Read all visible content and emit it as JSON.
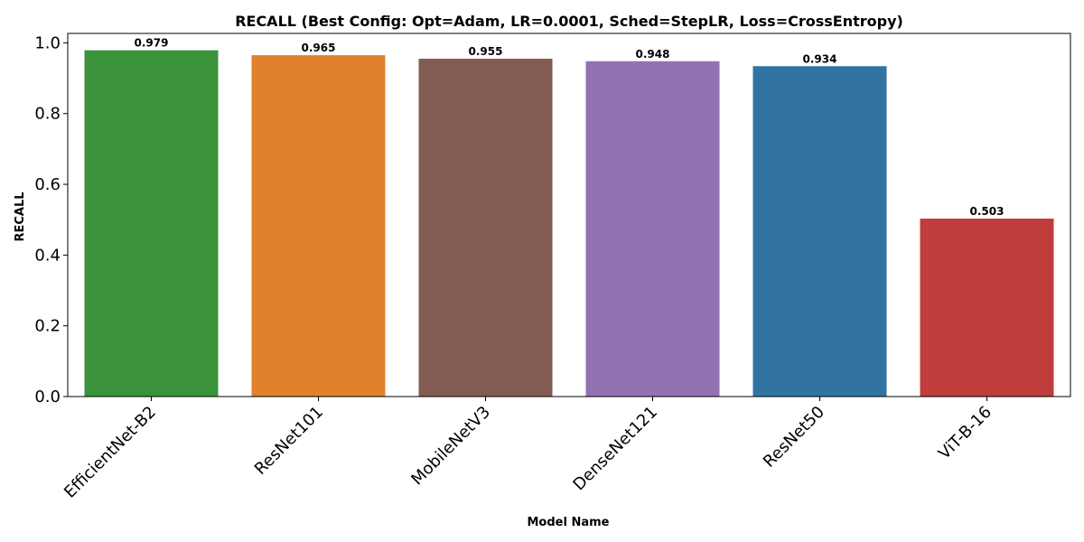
{
  "chart_data": {
    "type": "bar",
    "title": "RECALL (Best Config: Opt=Adam, LR=0.0001, Sched=StepLR, Loss=CrossEntropy)",
    "xlabel": "Model Name",
    "ylabel": "RECALL",
    "categories": [
      "EfficientNet-B2",
      "ResNet101",
      "MobileNetV3",
      "DenseNet121",
      "ResNet50",
      "ViT-B-16"
    ],
    "values": [
      0.979,
      0.965,
      0.955,
      0.948,
      0.934,
      0.503
    ],
    "value_labels": [
      "0.979",
      "0.965",
      "0.955",
      "0.948",
      "0.934",
      "0.503"
    ],
    "colors": [
      "#3a923a",
      "#e1812c",
      "#845b53",
      "#9372b2",
      "#3274a1",
      "#c03d3e"
    ],
    "ylim": [
      0,
      1.0266
    ],
    "yticks": [
      0.0,
      0.2,
      0.4,
      0.6,
      0.8,
      1.0
    ],
    "ytick_labels": [
      "0.0",
      "0.2",
      "0.4",
      "0.6",
      "0.8",
      "1.0"
    ],
    "grid": false,
    "legend": "none"
  }
}
